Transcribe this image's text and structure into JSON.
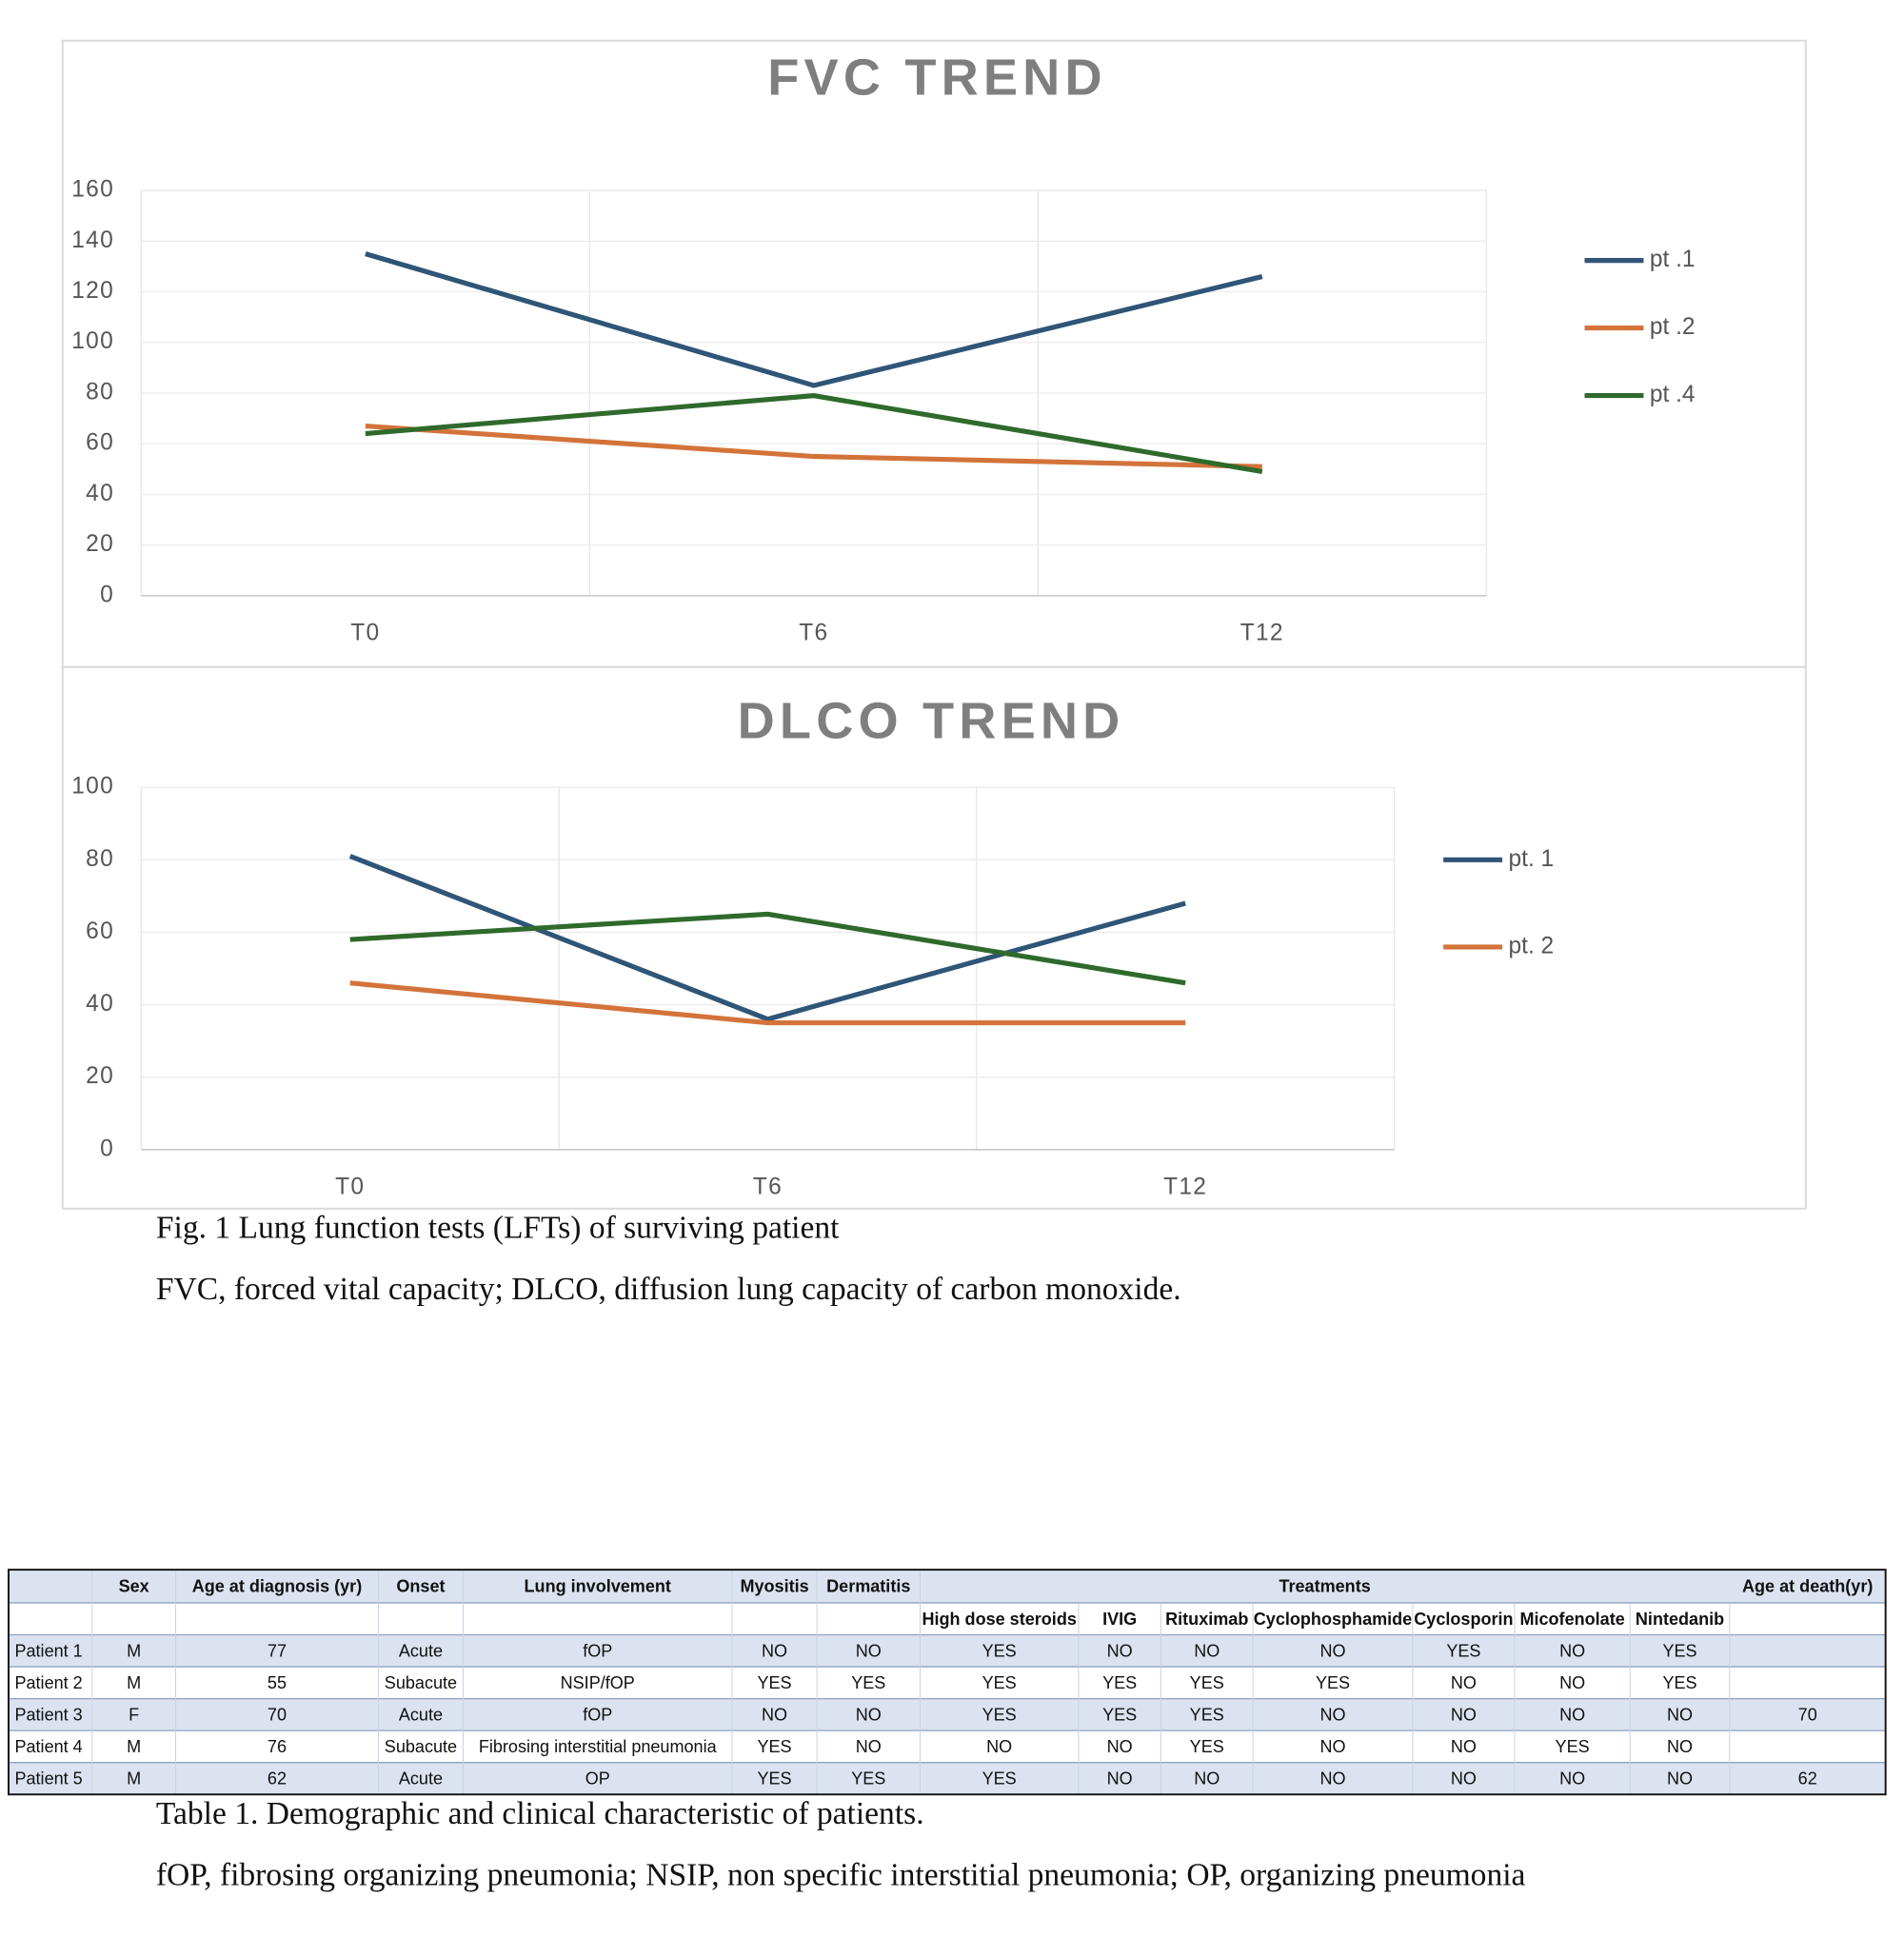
{
  "chart_data": [
    {
      "type": "line",
      "title": "FVC TREND",
      "categories": [
        "T0",
        "T6",
        "T12"
      ],
      "series": [
        {
          "name": "pt .1",
          "color": "#2f5577",
          "values": [
            135,
            83,
            126
          ]
        },
        {
          "name": "pt .2",
          "color": "#d3733a",
          "values": [
            67,
            55,
            51
          ]
        },
        {
          "name": "pt .4",
          "color": "#2f6a2c",
          "values": [
            64,
            79,
            49
          ]
        }
      ],
      "ylim": [
        0,
        160
      ],
      "yticks": [
        0,
        20,
        40,
        60,
        80,
        100,
        120,
        140,
        160
      ],
      "grid": true,
      "legend": "right"
    },
    {
      "type": "line",
      "title": "DLCO TREND",
      "categories": [
        "T0",
        "T6",
        "T12"
      ],
      "series": [
        {
          "name": "pt. 1",
          "color": "#2f5577",
          "values": [
            81,
            36,
            68
          ]
        },
        {
          "name": "pt. 2",
          "color": "#d3733a",
          "values": [
            46,
            35,
            35
          ]
        },
        {
          "color": "#2f6a2c",
          "values": [
            58,
            65,
            46
          ]
        }
      ],
      "ylim": [
        0,
        100
      ],
      "yticks": [
        0,
        20,
        40,
        60,
        80,
        100
      ],
      "grid": true,
      "legend": "right"
    }
  ],
  "figure_caption": "Fig. 1 Lung function tests (LFTs) of surviving patient",
  "figure_note": "FVC, forced vital capacity; DLCO, diffusion lung capacity of carbon monoxide.",
  "table": {
    "header_top": [
      "Sex",
      "Age at diagnosis (yr)",
      "Onset",
      "Lung involvement",
      "Myositis",
      "Dermatitis",
      "Treatments",
      "Age at death(yr)"
    ],
    "treatments": [
      "High dose steroids",
      "IVIG",
      "Rituximab",
      "Cyclophosphamide",
      "Cyclosporin",
      "Micofenolate",
      "Nintedanib"
    ],
    "rows": [
      [
        "Patient 1",
        "M",
        "77",
        "Acute",
        "fOP",
        "NO",
        "NO",
        "YES",
        "NO",
        "NO",
        "NO",
        "YES",
        "NO",
        "YES",
        null
      ],
      [
        "Patient 2",
        "M",
        "55",
        "Subacute",
        "NSIP/fOP",
        "YES",
        "YES",
        "YES",
        "YES",
        "YES",
        "YES",
        "NO",
        "NO",
        "YES",
        null
      ],
      [
        "Patient 3",
        "F",
        "70",
        "Acute",
        "fOP",
        "NO",
        "NO",
        "YES",
        "YES",
        "YES",
        "NO",
        "NO",
        "NO",
        "NO",
        "70"
      ],
      [
        "Patient 4",
        "M",
        "76",
        "Subacute",
        "Fibrosing interstitial pneumonia",
        "YES",
        "NO",
        "NO",
        "NO",
        "YES",
        "NO",
        "NO",
        "YES",
        "NO",
        null
      ],
      [
        "Patient 5",
        "M",
        "62",
        "Acute",
        "OP",
        "YES",
        "YES",
        "YES",
        "NO",
        "NO",
        "NO",
        "NO",
        "NO",
        "NO",
        "62"
      ]
    ],
    "caption": "Table 1. Demographic and clinical characteristic of patients.",
    "note": "fOP, fibrosing organizing pneumonia; NSIP, non specific interstitial pneumonia; OP, organizing pneumonia"
  }
}
